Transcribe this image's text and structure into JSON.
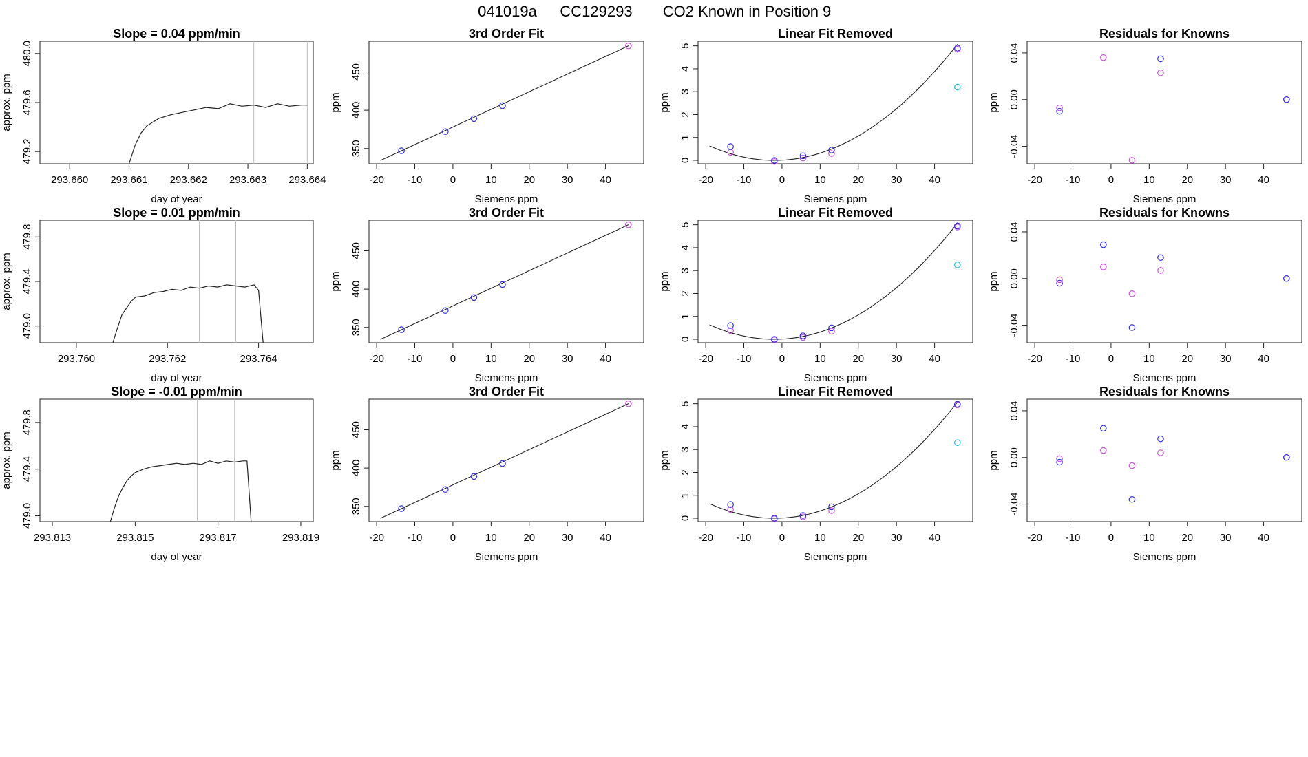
{
  "header": {
    "run": "041019a",
    "tank": "CC129293",
    "desc": "CO2 Known in Position  9"
  },
  "chart_data": {
    "type": "scatter",
    "siemens_x": [
      -13.5,
      -2,
      5.5,
      13,
      46
    ],
    "rows": [
      {
        "time": {
          "type": "line",
          "title": "Slope =  0.04  ppm/min",
          "xlabel": "day of year",
          "ylabel": "approx. ppm",
          "xlim": [
            293.6595,
            293.6641
          ],
          "ylim": [
            479.1,
            480.1
          ],
          "xticks": [
            "293.660",
            "293.661",
            "293.662",
            "293.663",
            "293.664"
          ],
          "yticks": [
            "479.2",
            "479.6",
            "480.0"
          ],
          "vlines": [
            293.6631,
            293.664
          ],
          "curve_x": [
            293.661,
            293.6611,
            293.6612,
            293.6613,
            293.6614,
            293.6615,
            293.6617,
            293.6619,
            293.6621,
            293.6623,
            293.6625,
            293.6627,
            293.6629,
            293.6631,
            293.6633,
            293.6635,
            293.6637,
            293.6639,
            293.664
          ],
          "curve_y": [
            479.1,
            479.25,
            479.35,
            479.41,
            479.44,
            479.47,
            479.5,
            479.52,
            479.54,
            479.56,
            479.55,
            479.59,
            479.57,
            479.58,
            479.56,
            479.59,
            479.57,
            479.58,
            479.58
          ]
        },
        "fit": {
          "title": "3rd Order Fit",
          "xlabel": "Siemens ppm",
          "ylabel": "ppm",
          "y": [
            347,
            372,
            389,
            406,
            484
          ],
          "highlight_index": 4
        },
        "linear": {
          "title": "Linear Fit Removed",
          "xlabel": "Siemens ppm",
          "ylabel": "ppm",
          "blue": [
            0.6,
            0.0,
            0.2,
            0.45,
            4.9
          ],
          "magenta": [
            0.35,
            -0.05,
            0.1,
            0.3,
            4.85
          ],
          "cyan_x": 46,
          "cyan_y": 3.2,
          "curve_a": 0.0022,
          "curve_v": -2,
          "curve_c": 0.0
        },
        "residuals": {
          "title": "Residuals for Knowns",
          "xlabel": "Siemens ppm",
          "ylabel": "ppm",
          "blue": [
            -0.01,
            null,
            null,
            0.035,
            0.0
          ],
          "magenta": [
            -0.007,
            0.036,
            -0.052,
            0.023,
            0.0
          ]
        }
      },
      {
        "time": {
          "type": "line",
          "title": "Slope =  0.01  ppm/min",
          "xlabel": "day of year",
          "ylabel": "approx. ppm",
          "xlim": [
            293.7592,
            293.7652
          ],
          "ylim": [
            478.85,
            479.95
          ],
          "xticks": [
            "293.760",
            "293.762",
            "293.764"
          ],
          "yticks": [
            "479.0",
            "479.4",
            "479.8"
          ],
          "vlines": [
            293.7627,
            293.7635
          ],
          "curve_x": [
            293.7608,
            293.7609,
            293.761,
            293.7611,
            293.7612,
            293.7613,
            293.7615,
            293.7617,
            293.7619,
            293.7621,
            293.7623,
            293.7625,
            293.7627,
            293.7629,
            293.7631,
            293.7633,
            293.7635,
            293.7637,
            293.7639,
            293.764,
            293.7641
          ],
          "curve_y": [
            478.85,
            478.98,
            479.1,
            479.16,
            479.22,
            479.26,
            479.27,
            479.3,
            479.31,
            479.33,
            479.32,
            479.35,
            479.34,
            479.36,
            479.35,
            479.37,
            479.36,
            479.35,
            479.37,
            479.32,
            478.85
          ]
        },
        "fit": {
          "title": "3rd Order Fit",
          "xlabel": "Siemens ppm",
          "ylabel": "ppm",
          "y": [
            347,
            372,
            389,
            406,
            484
          ],
          "highlight_index": 4
        },
        "linear": {
          "title": "Linear Fit Removed",
          "xlabel": "Siemens ppm",
          "ylabel": "ppm",
          "blue": [
            0.6,
            0.0,
            0.15,
            0.5,
            4.95
          ],
          "magenta": [
            0.38,
            -0.03,
            0.08,
            0.35,
            4.9
          ],
          "cyan_x": 46,
          "cyan_y": 3.25,
          "curve_a": 0.0022,
          "curve_v": -2,
          "curve_c": 0.0
        },
        "residuals": {
          "title": "Residuals for Knowns",
          "xlabel": "Siemens ppm",
          "ylabel": "ppm",
          "blue": [
            -0.004,
            0.029,
            -0.042,
            0.018,
            0.0
          ],
          "magenta": [
            -0.001,
            0.01,
            -0.013,
            0.007,
            0.0
          ]
        }
      },
      {
        "time": {
          "type": "line",
          "title": "Slope =  -0.01  ppm/min",
          "xlabel": "day of year",
          "ylabel": "approx. ppm",
          "xlim": [
            293.8127,
            293.8193
          ],
          "ylim": [
            478.95,
            480.0
          ],
          "xticks": [
            "293.813",
            "293.815",
            "293.817",
            "293.819"
          ],
          "yticks": [
            "479.0",
            "479.4",
            "479.8"
          ],
          "vlines": [
            293.8165,
            293.8174
          ],
          "curve_x": [
            293.8144,
            293.8145,
            293.8146,
            293.8147,
            293.8148,
            293.8149,
            293.815,
            293.8152,
            293.8154,
            293.8156,
            293.8158,
            293.816,
            293.8162,
            293.8164,
            293.8166,
            293.8168,
            293.817,
            293.8172,
            293.8174,
            293.8176,
            293.8177,
            293.8178
          ],
          "curve_y": [
            478.95,
            479.07,
            479.17,
            479.24,
            479.3,
            479.34,
            479.37,
            479.4,
            479.42,
            479.43,
            479.44,
            479.45,
            479.44,
            479.45,
            479.44,
            479.47,
            479.45,
            479.47,
            479.46,
            479.47,
            479.47,
            478.95
          ]
        },
        "fit": {
          "title": "3rd Order Fit",
          "xlabel": "Siemens ppm",
          "ylabel": "ppm",
          "y": [
            347,
            372,
            389,
            406,
            484
          ],
          "highlight_index": 4
        },
        "linear": {
          "title": "Linear Fit Removed",
          "xlabel": "Siemens ppm",
          "ylabel": "ppm",
          "blue": [
            0.6,
            0.0,
            0.12,
            0.5,
            4.98
          ],
          "magenta": [
            0.38,
            -0.03,
            0.06,
            0.33,
            4.95
          ],
          "cyan_x": 46,
          "cyan_y": 3.3,
          "curve_a": 0.0022,
          "curve_v": -2,
          "curve_c": 0.0
        },
        "residuals": {
          "title": "Residuals for Knowns",
          "xlabel": "Siemens ppm",
          "ylabel": "ppm",
          "blue": [
            -0.004,
            0.025,
            -0.036,
            0.016,
            0.0
          ],
          "magenta": [
            -0.001,
            0.006,
            -0.007,
            0.004,
            0.0
          ]
        }
      }
    ],
    "shared_axes": {
      "siemens_xlim": [
        -22,
        50
      ],
      "siemens_xticks": [
        -20,
        -10,
        0,
        10,
        20,
        30,
        40
      ],
      "fit_ylim": [
        330,
        490
      ],
      "fit_yticks": [
        350,
        400,
        450
      ],
      "linear_ylim": [
        -0.15,
        5.2
      ],
      "linear_yticks": [
        0,
        1,
        2,
        3,
        4,
        5
      ],
      "resid_ylim": [
        -0.055,
        0.05
      ],
      "resid_yticks": [
        "-0.04",
        "0.00",
        "0.04"
      ],
      "resid_ytick_values": [
        -0.04,
        0.0,
        0.04
      ]
    },
    "colors": {
      "blue": "#3333dd",
      "magenta": "#cc55dd",
      "cyan": "#22bbdd",
      "line": "#222222",
      "vline": "#bbbbbb"
    }
  }
}
